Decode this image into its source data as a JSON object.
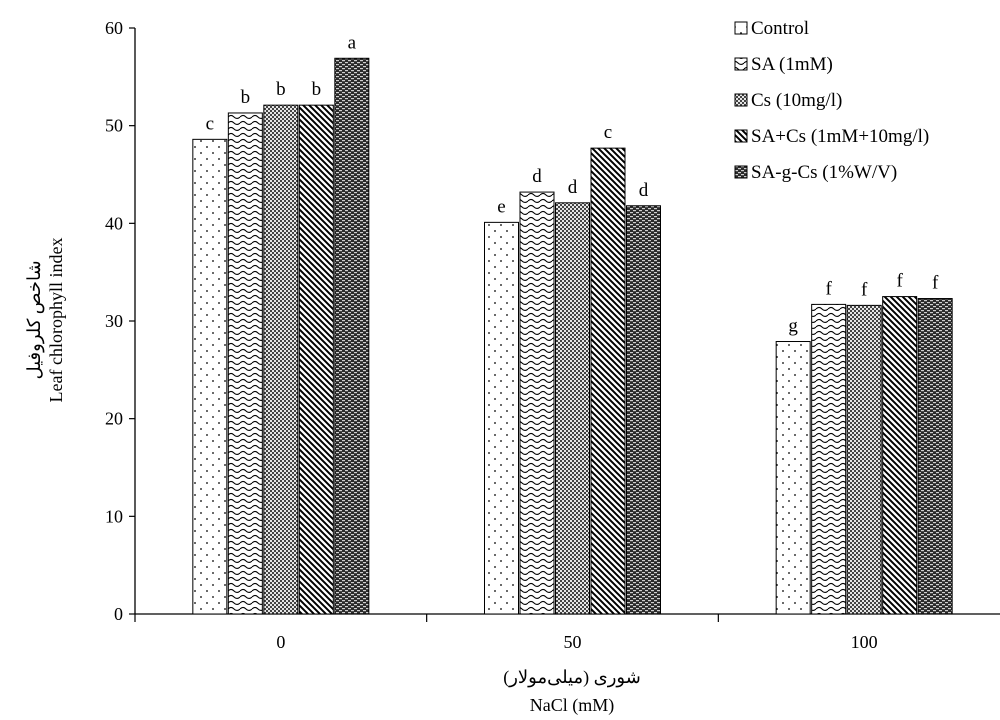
{
  "chart_data": {
    "type": "bar",
    "xlabel_fa": "شوری (میلی‌مولار)",
    "xlabel": "NaCl (mM)",
    "ylabel_fa": "شاخص کلروفیل",
    "ylabel": "Leaf chlorophyll index",
    "ylim": [
      0,
      60
    ],
    "yticks": [
      0,
      10,
      20,
      30,
      40,
      50,
      60
    ],
    "categories": [
      "0",
      "50",
      "100"
    ],
    "grid": false,
    "legend_position": "top-right",
    "series": [
      {
        "name": "Control",
        "pattern": "dots",
        "values": [
          48.6,
          40.1,
          27.9
        ],
        "letters": [
          "c",
          "e",
          "g"
        ]
      },
      {
        "name": "SA (1mM)",
        "pattern": "waves",
        "values": [
          51.3,
          43.2,
          31.7
        ],
        "letters": [
          "b",
          "d",
          "f"
        ]
      },
      {
        "name": "Cs (10mg/l)",
        "pattern": "checker",
        "values": [
          52.1,
          42.1,
          31.6
        ],
        "letters": [
          "b",
          "d",
          "f"
        ]
      },
      {
        "name": "SA+Cs (1mM+10mg/l)",
        "pattern": "diagonal",
        "values": [
          52.1,
          47.7,
          32.5
        ],
        "letters": [
          "b",
          "c",
          "f"
        ]
      },
      {
        "name": "SA-g-Cs (1%W/V)",
        "pattern": "dense",
        "values": [
          56.9,
          41.8,
          32.3
        ],
        "letters": [
          "a",
          "d",
          "f"
        ]
      }
    ]
  }
}
